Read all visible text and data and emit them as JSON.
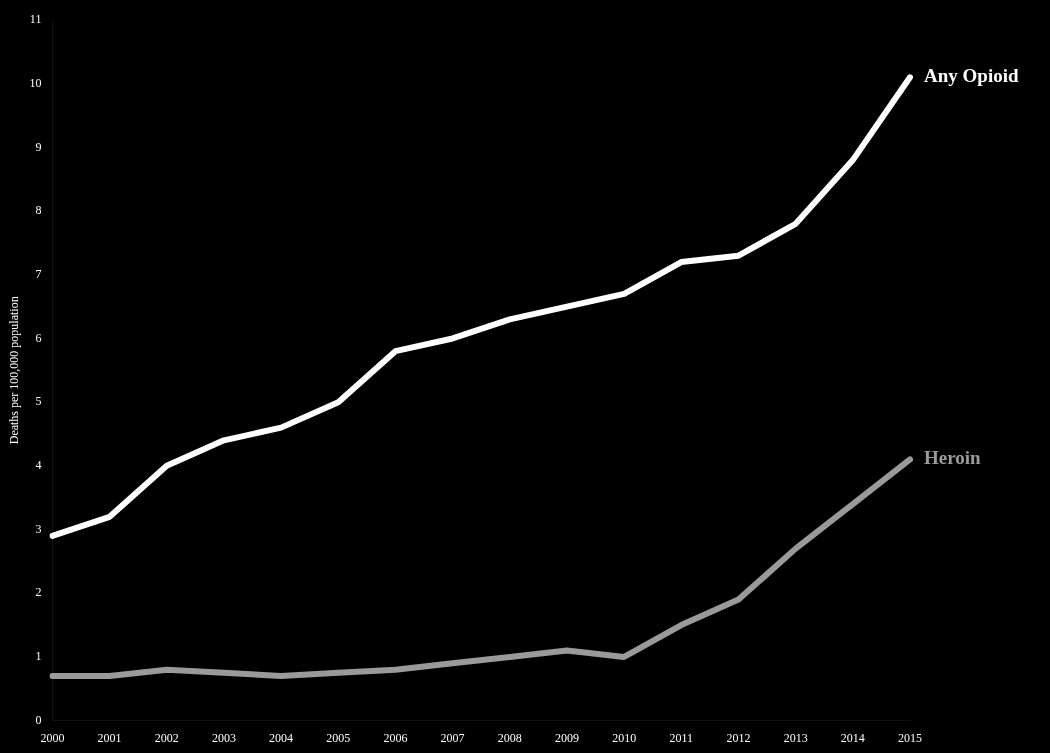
{
  "chart_data": {
    "type": "line",
    "ylabel": "Deaths per 100,000 population",
    "categories": [
      "2000",
      "2001",
      "2002",
      "2003",
      "2004",
      "2005",
      "2006",
      "2007",
      "2008",
      "2009",
      "2010",
      "2011",
      "2012",
      "2013",
      "2014",
      "2015"
    ],
    "ylim": [
      0,
      11
    ],
    "yticks": [
      0,
      1,
      2,
      3,
      4,
      5,
      6,
      7,
      8,
      9,
      10,
      11
    ],
    "grid": false,
    "legend": false,
    "marker": "none",
    "line_style": "solid",
    "series": [
      {
        "name": "Any Opioid",
        "color": "#ffffff",
        "values": [
          2.9,
          3.2,
          4.0,
          4.4,
          4.6,
          5.0,
          5.8,
          6.0,
          6.3,
          6.5,
          6.7,
          7.2,
          7.3,
          7.8,
          8.8,
          10.1
        ]
      },
      {
        "name": "Heroin",
        "color": "#9a9a9a",
        "values": [
          0.7,
          0.7,
          0.8,
          0.75,
          0.7,
          0.75,
          0.8,
          0.9,
          1.0,
          1.1,
          1.0,
          1.5,
          1.9,
          2.7,
          3.4,
          4.1
        ]
      }
    ]
  }
}
